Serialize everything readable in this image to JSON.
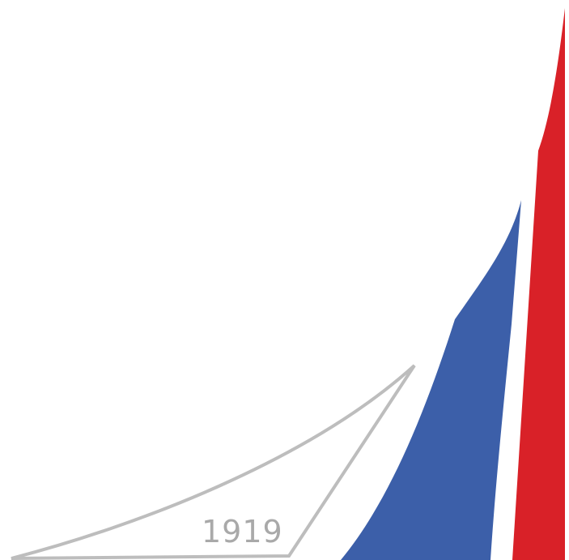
{
  "logo": {
    "year": "1919",
    "colors": {
      "background": "#ffffff",
      "outline_sail": "#bdbdbd",
      "year_text": "#a9a9a9",
      "blue_sail": "#3c5fa9",
      "red_sail": "#d92128"
    }
  }
}
